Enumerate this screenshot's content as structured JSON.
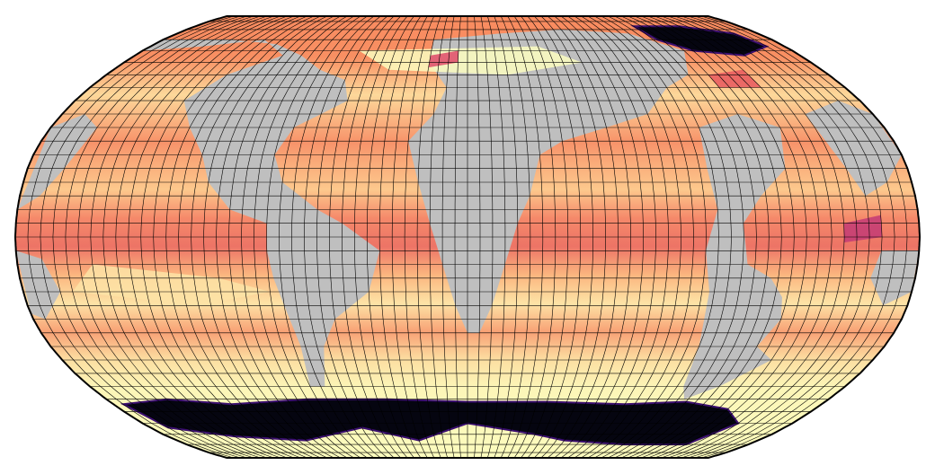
{
  "map": {
    "projection": "Robinson",
    "land_color": "#bfbfbf",
    "grid_color": "#000000",
    "colormap": "magma",
    "colormap_stops": [
      "#000004",
      "#3b0f70",
      "#8c2981",
      "#de4968",
      "#fe9f6d",
      "#fcfdbf"
    ],
    "grid_lon_step_deg": 5,
    "grid_lat_step_deg": 5,
    "central_longitude": 0
  }
}
